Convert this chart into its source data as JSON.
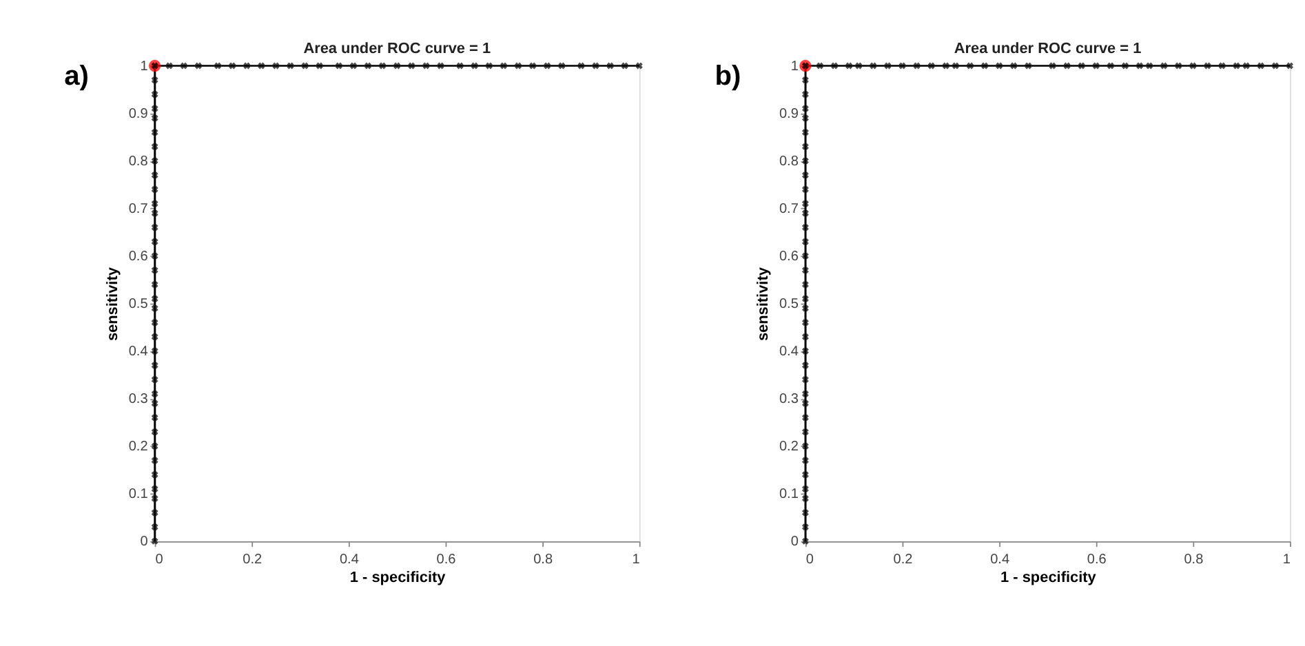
{
  "chart_data": [
    {
      "type": "line",
      "title": "Area under ROC curve = 1",
      "xlabel": "1 - specificity",
      "ylabel": "sensitivity",
      "annotations": [
        "a)"
      ],
      "xlim": [
        0,
        1
      ],
      "ylim": [
        0,
        1
      ],
      "xticks": [
        0,
        0.2,
        0.4,
        0.6,
        0.8,
        1
      ],
      "yticks": [
        0,
        0.1,
        0.2,
        0.3,
        0.4,
        0.5,
        0.6,
        0.7,
        0.8,
        0.9,
        1
      ],
      "grid": false,
      "series": [
        {
          "color": "#000000",
          "marker": "cross",
          "line_style": "solid",
          "x": [
            0,
            0,
            0,
            0,
            0,
            0,
            0,
            0,
            0,
            0,
            0,
            0,
            0,
            0,
            0,
            0,
            0,
            0,
            0,
            0,
            0,
            0,
            0,
            0,
            0,
            0,
            0,
            0,
            0,
            0,
            0,
            0,
            0,
            0,
            0,
            0,
            0.03,
            0.06,
            0.09,
            0.13,
            0.16,
            0.19,
            0.22,
            0.25,
            0.28,
            0.31,
            0.34,
            0.38,
            0.41,
            0.44,
            0.47,
            0.5,
            0.53,
            0.56,
            0.59,
            0.63,
            0.66,
            0.69,
            0.72,
            0.75,
            0.78,
            0.81,
            0.84,
            0.88,
            0.91,
            0.94,
            0.97,
            1
          ],
          "values": [
            0,
            0.03,
            0.06,
            0.09,
            0.11,
            0.14,
            0.17,
            0.2,
            0.23,
            0.26,
            0.29,
            0.31,
            0.34,
            0.37,
            0.4,
            0.43,
            0.46,
            0.49,
            0.51,
            0.54,
            0.57,
            0.6,
            0.63,
            0.66,
            0.69,
            0.71,
            0.74,
            0.77,
            0.8,
            0.83,
            0.86,
            0.89,
            0.91,
            0.94,
            0.97,
            1,
            1,
            1,
            1,
            1,
            1,
            1,
            1,
            1,
            1,
            1,
            1,
            1,
            1,
            1,
            1,
            1,
            1,
            1,
            1,
            1,
            1,
            1,
            1,
            1,
            1,
            1,
            1,
            1,
            1,
            1,
            1,
            1
          ]
        },
        {
          "type": "scatter",
          "color": "#ff0000",
          "marker": "circle",
          "x": [
            0
          ],
          "values": [
            1
          ]
        }
      ]
    },
    {
      "type": "line",
      "title": "Area under ROC curve = 1",
      "xlabel": "1 - specificity",
      "ylabel": "sensitivity",
      "annotations": [
        "b)"
      ],
      "xlim": [
        0,
        1
      ],
      "ylim": [
        0,
        1
      ],
      "xticks": [
        0,
        0.2,
        0.4,
        0.6,
        0.8,
        1
      ],
      "yticks": [
        0,
        0.1,
        0.2,
        0.3,
        0.4,
        0.5,
        0.6,
        0.7,
        0.8,
        0.9,
        1
      ],
      "grid": false,
      "series": [
        {
          "color": "#000000",
          "marker": "cross",
          "line_style": "solid",
          "x": [
            0,
            0,
            0,
            0,
            0,
            0,
            0,
            0,
            0,
            0,
            0,
            0,
            0,
            0,
            0,
            0,
            0,
            0,
            0,
            0,
            0,
            0,
            0,
            0,
            0,
            0,
            0,
            0,
            0,
            0,
            0,
            0,
            0,
            0,
            0,
            0,
            0.03,
            0.06,
            0.09,
            0.11,
            0.14,
            0.17,
            0.2,
            0.23,
            0.26,
            0.29,
            0.31,
            0.34,
            0.37,
            0.4,
            0.43,
            0.46,
            0.51,
            0.54,
            0.57,
            0.6,
            0.63,
            0.66,
            0.69,
            0.71,
            0.74,
            0.77,
            0.8,
            0.83,
            0.86,
            0.89,
            0.91,
            0.94,
            0.97,
            1
          ],
          "values": [
            0,
            0.03,
            0.06,
            0.09,
            0.11,
            0.14,
            0.17,
            0.2,
            0.23,
            0.26,
            0.29,
            0.31,
            0.34,
            0.37,
            0.4,
            0.43,
            0.46,
            0.49,
            0.51,
            0.54,
            0.57,
            0.6,
            0.63,
            0.66,
            0.69,
            0.71,
            0.74,
            0.77,
            0.8,
            0.83,
            0.86,
            0.89,
            0.91,
            0.94,
            0.97,
            1,
            1,
            1,
            1,
            1,
            1,
            1,
            1,
            1,
            1,
            1,
            1,
            1,
            1,
            1,
            1,
            1,
            1,
            1,
            1,
            1,
            1,
            1,
            1,
            1,
            1,
            1,
            1,
            1,
            1,
            1,
            1,
            1,
            1,
            1
          ]
        },
        {
          "type": "scatter",
          "color": "#ff0000",
          "marker": "circle",
          "x": [
            0
          ],
          "values": [
            1
          ]
        }
      ]
    }
  ]
}
